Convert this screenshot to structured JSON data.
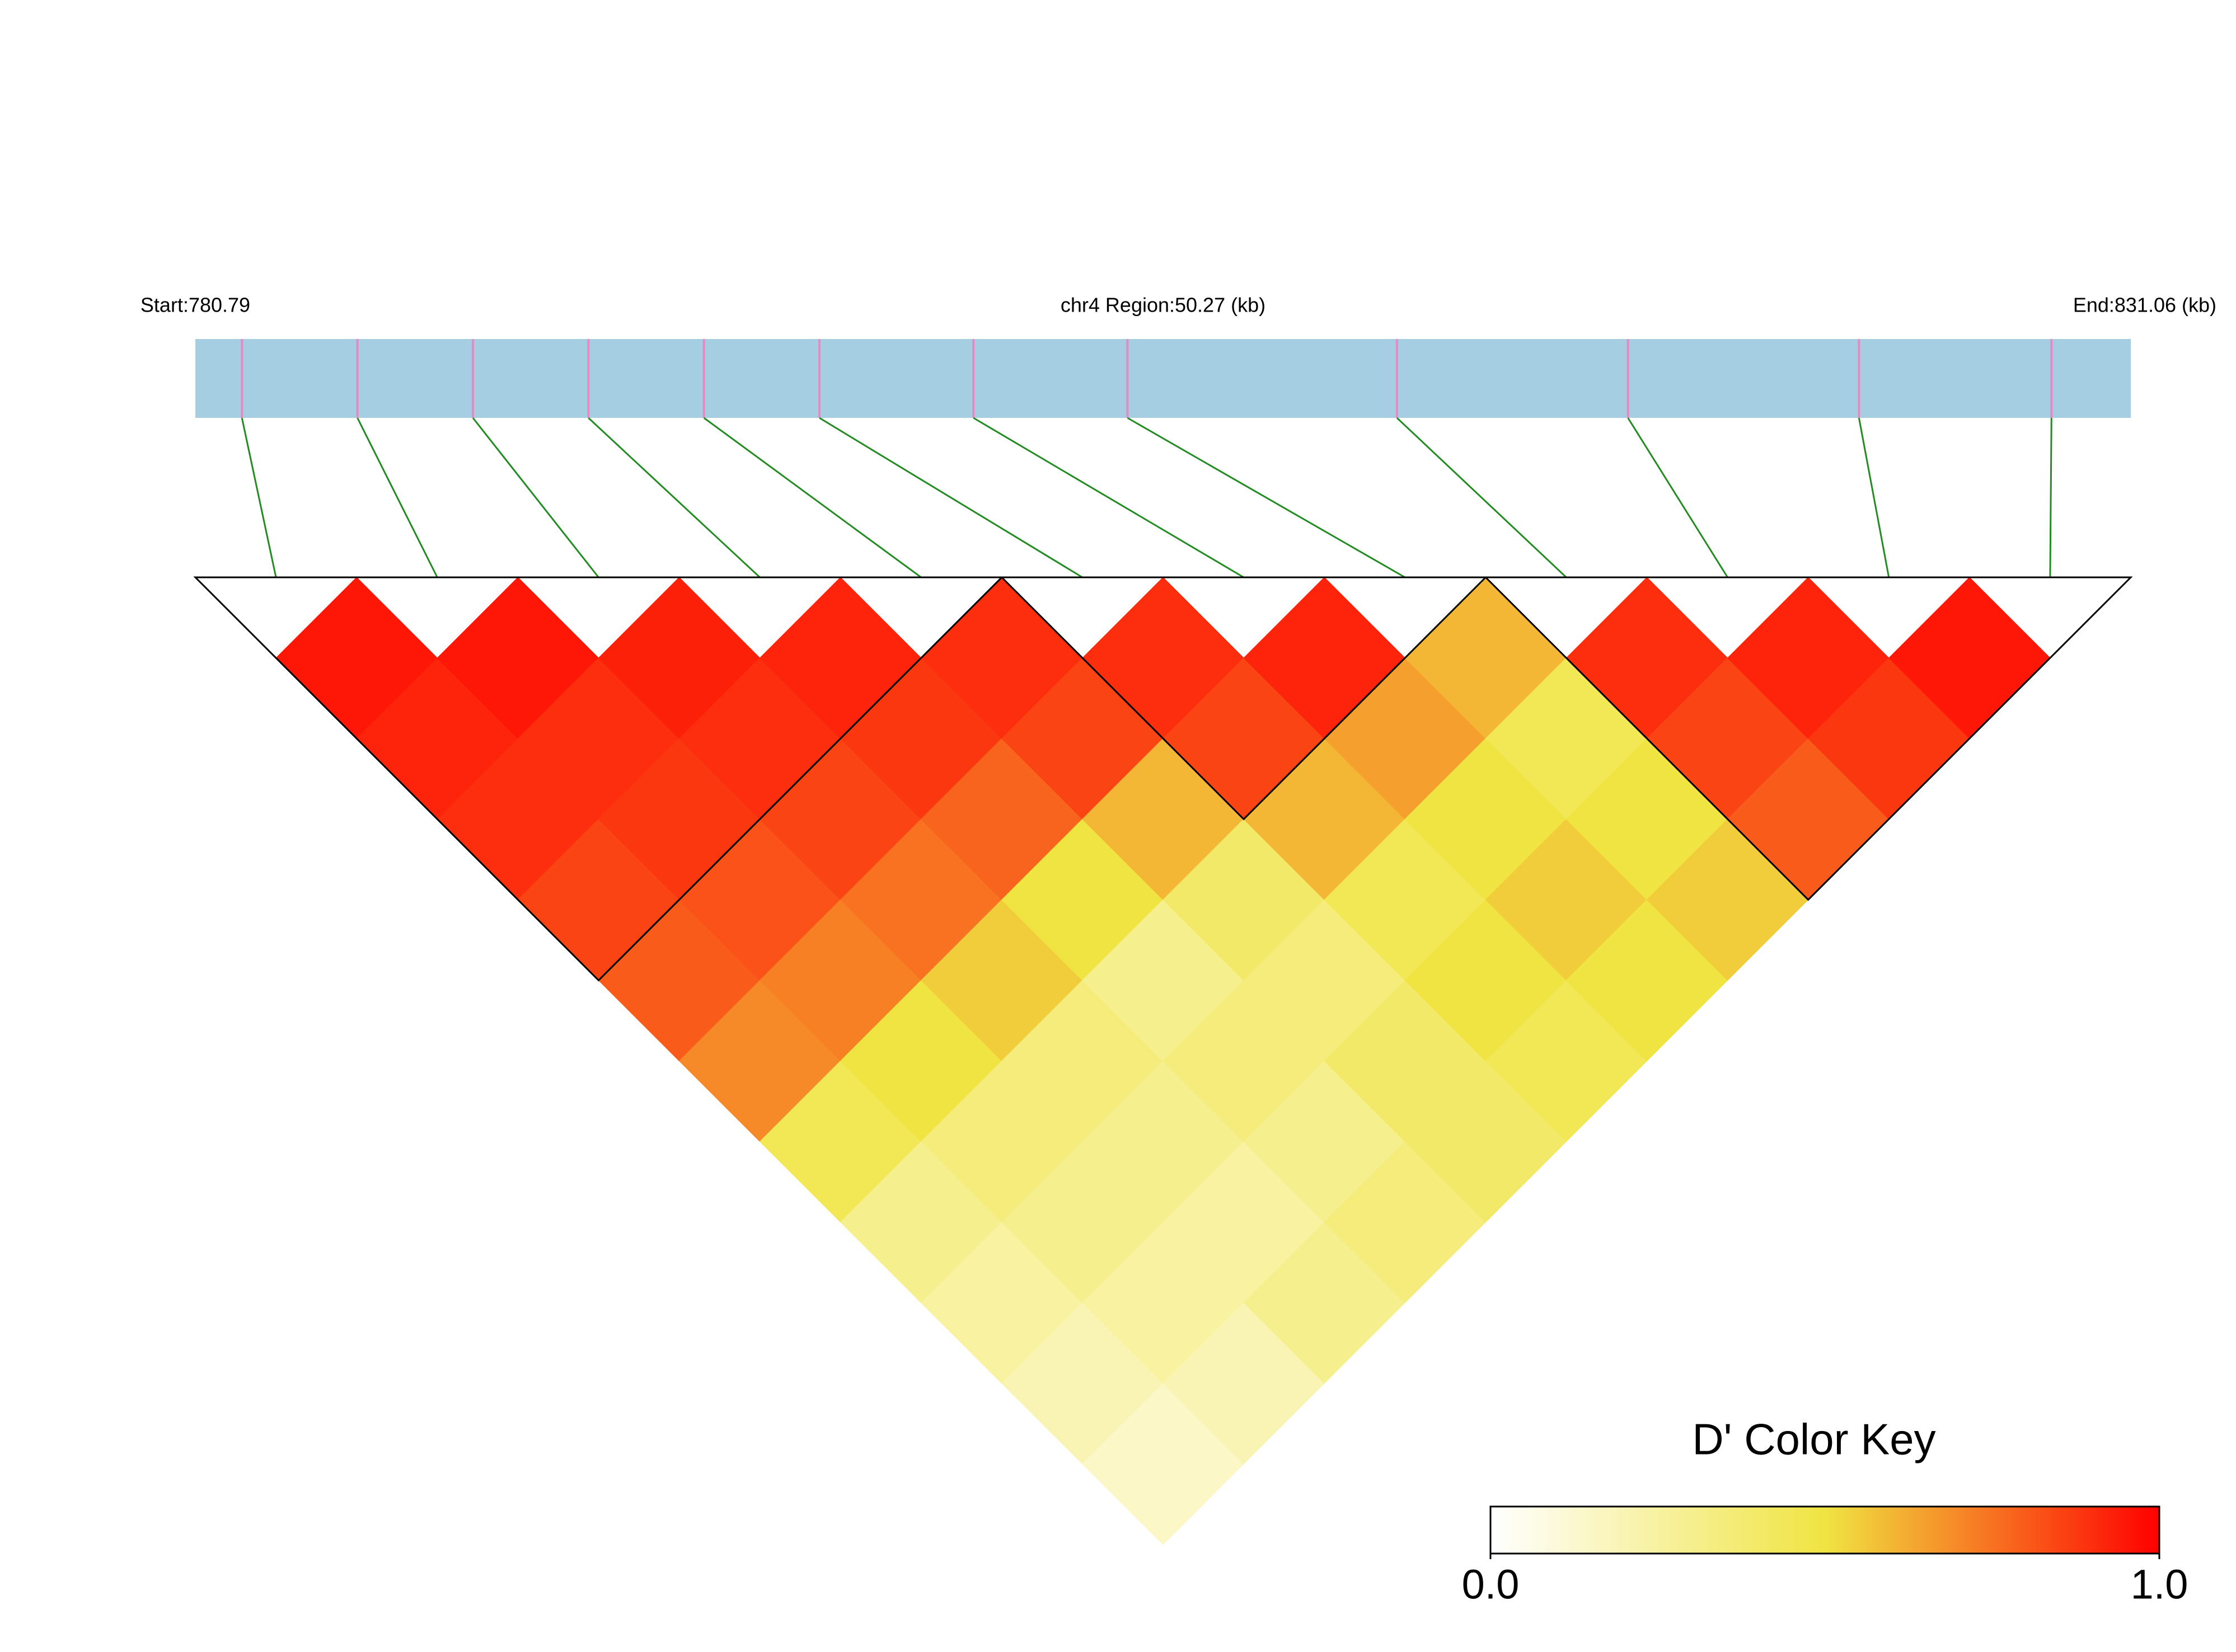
{
  "chart_data": {
    "type": "ld_heatmap",
    "start_label": "Start:780.79",
    "region_label": "chr4 Region:50.27 (kb)",
    "end_label": "End:831.06 (kb)",
    "xlim": [
      780.79,
      831.06
    ],
    "snp_positions": [
      782,
      785,
      788,
      791,
      794,
      797,
      801,
      805,
      812,
      818,
      824,
      829
    ],
    "ld": {
      "values": [
        [
          0.95,
          0.92,
          0.9,
          0.85,
          0.8,
          0.7,
          0.45,
          0.3,
          0.25,
          0.2,
          0.15
        ],
        [
          0.95,
          0.9,
          0.88,
          0.82,
          0.72,
          0.5,
          0.35,
          0.3,
          0.25,
          0.2
        ],
        [
          0.93,
          0.9,
          0.85,
          0.75,
          0.55,
          0.35,
          0.3,
          0.25,
          0.3
        ],
        [
          0.92,
          0.88,
          0.78,
          0.5,
          0.3,
          0.35,
          0.3,
          0.35
        ],
        [
          0.9,
          0.85,
          0.6,
          0.4,
          0.35,
          0.4,
          0.4
        ],
        [
          0.9,
          0.85,
          0.6,
          0.45,
          0.5,
          0.45
        ],
        [
          0.92,
          0.65,
          0.5,
          0.55,
          0.5
        ],
        [
          0.6,
          0.45,
          0.5,
          0.55
        ],
        [
          0.9,
          0.85,
          0.8
        ],
        [
          0.92,
          0.88
        ],
        [
          0.95
        ]
      ]
    },
    "blocks": [
      [
        0,
        4
      ],
      [
        5,
        7
      ],
      [
        8,
        11
      ]
    ],
    "bar_color": "#a6cee3",
    "tick_color": "#e78ac3",
    "link_color": "#228b22",
    "color_key": {
      "title": "D' Color Key",
      "lim": [
        0,
        1
      ],
      "ticks": [
        {
          "value": 0,
          "label": "0.0"
        },
        {
          "value": 1,
          "label": "1.0"
        }
      ],
      "colors": [
        "#ffffff",
        "#f0e442",
        "#ff0000"
      ]
    }
  }
}
